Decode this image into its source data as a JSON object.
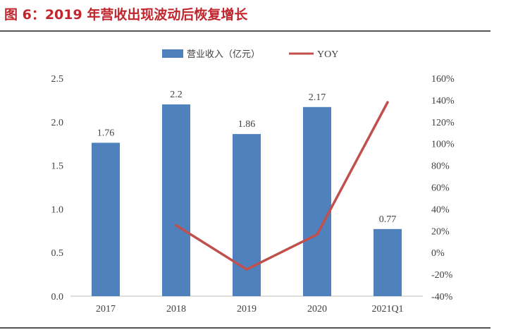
{
  "figure": {
    "title": "图 6：2019 年营收出现波动后恢复增长"
  },
  "colors": {
    "bar": "#4f81bd",
    "line": "#c0504d",
    "title": "#c0262d"
  },
  "chart_data": {
    "type": "bar",
    "categories": [
      "2017",
      "2018",
      "2019",
      "2020",
      "2021Q1"
    ],
    "series": [
      {
        "name": "营业收入（亿元）",
        "type": "bar",
        "axis": "left",
        "values": [
          1.76,
          2.2,
          1.86,
          2.17,
          0.77
        ],
        "labels": [
          "1.76",
          "2.2",
          "1.86",
          "2.17",
          "0.77"
        ]
      },
      {
        "name": "YOY",
        "type": "line",
        "axis": "right",
        "values": [
          null,
          25,
          -15.5,
          16.7,
          138
        ]
      }
    ],
    "left_axis": {
      "ylim": [
        0,
        2.5
      ],
      "ticks": [
        "0.0",
        "0.5",
        "1.0",
        "1.5",
        "2.0",
        "2.5"
      ]
    },
    "right_axis": {
      "ylim": [
        -40,
        160
      ],
      "ticks": [
        "-40%",
        "-20%",
        "0%",
        "20%",
        "40%",
        "60%",
        "80%",
        "100%",
        "120%",
        "140%",
        "160%"
      ]
    },
    "legend_position": "top-center",
    "grid": false
  }
}
